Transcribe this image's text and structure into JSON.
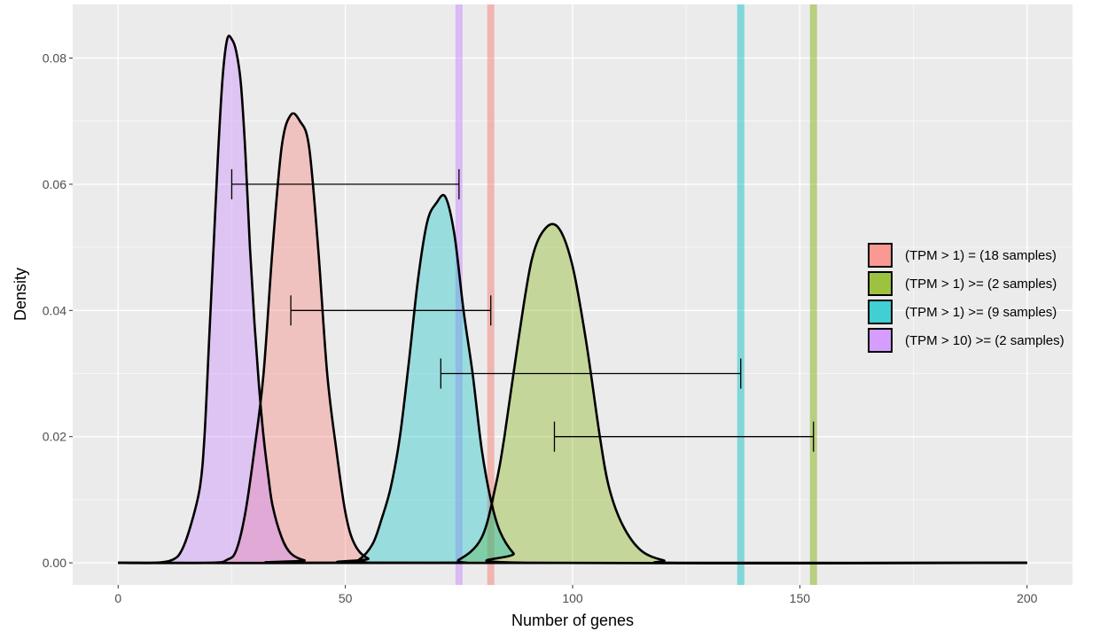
{
  "chart_data": {
    "type": "area",
    "title": "",
    "xlabel": "Number of genes",
    "ylabel": "Density",
    "xlim": [
      -10,
      210
    ],
    "ylim": [
      -0.0035,
      0.0885
    ],
    "x_ticks": [
      0,
      50,
      100,
      150,
      200
    ],
    "x_tick_labels": [
      "0",
      "50",
      "100",
      "150",
      "200"
    ],
    "y_ticks": [
      0.0,
      0.02,
      0.04,
      0.06,
      0.08
    ],
    "y_tick_labels": [
      "0.00",
      "0.02",
      "0.04",
      "0.06",
      "0.08"
    ],
    "grid": true,
    "legend_position": "right",
    "series": [
      {
        "name": "(TPM > 1) = (18 samples)",
        "color": "#F8766D",
        "vline": 82,
        "errorbar": {
          "y": 0.04,
          "xmin": 38,
          "xmax": 82
        },
        "density": [
          [
            0,
            0
          ],
          [
            20,
            0
          ],
          [
            24,
            0.0005
          ],
          [
            26,
            0.002
          ],
          [
            28,
            0.008
          ],
          [
            30,
            0.018
          ],
          [
            32,
            0.03
          ],
          [
            34,
            0.05
          ],
          [
            36,
            0.066
          ],
          [
            38,
            0.071
          ],
          [
            40,
            0.07
          ],
          [
            42,
            0.066
          ],
          [
            44,
            0.05
          ],
          [
            46,
            0.03
          ],
          [
            48,
            0.018
          ],
          [
            50,
            0.008
          ],
          [
            52,
            0.003
          ],
          [
            55,
            0.0007
          ],
          [
            60,
            0
          ],
          [
            200,
            0
          ]
        ]
      },
      {
        "name": "(TPM > 1) >= (2 samples)",
        "color": "#7CAE00",
        "vline": 153,
        "errorbar": {
          "y": 0.02,
          "xmin": 96,
          "xmax": 153
        },
        "density": [
          [
            0,
            0
          ],
          [
            70,
            0
          ],
          [
            75,
            0.0005
          ],
          [
            80,
            0.004
          ],
          [
            83,
            0.012
          ],
          [
            85,
            0.02
          ],
          [
            88,
            0.035
          ],
          [
            91,
            0.048
          ],
          [
            94,
            0.053
          ],
          [
            97,
            0.053
          ],
          [
            100,
            0.047
          ],
          [
            103,
            0.035
          ],
          [
            106,
            0.02
          ],
          [
            108,
            0.012
          ],
          [
            111,
            0.006
          ],
          [
            115,
            0.002
          ],
          [
            120,
            0.0004
          ],
          [
            125,
            0
          ],
          [
            200,
            0
          ]
        ]
      },
      {
        "name": "(TPM > 1) >= (9 samples)",
        "color": "#00BFC4",
        "vline": 137,
        "errorbar": {
          "y": 0.03,
          "xmin": 71,
          "xmax": 137
        },
        "density": [
          [
            0,
            0
          ],
          [
            50,
            0
          ],
          [
            53,
            0.0005
          ],
          [
            56,
            0.003
          ],
          [
            58,
            0.007
          ],
          [
            60,
            0.012
          ],
          [
            62,
            0.02
          ],
          [
            64,
            0.032
          ],
          [
            66,
            0.045
          ],
          [
            68,
            0.054
          ],
          [
            70,
            0.057
          ],
          [
            72,
            0.058
          ],
          [
            74,
            0.052
          ],
          [
            76,
            0.04
          ],
          [
            78,
            0.03
          ],
          [
            80,
            0.018
          ],
          [
            82,
            0.01
          ],
          [
            84,
            0.005
          ],
          [
            87,
            0.0015
          ],
          [
            90,
            0
          ],
          [
            200,
            0
          ]
        ]
      },
      {
        "name": "(TPM > 10) >= (2 samples)",
        "color": "#C77CFF",
        "vline": 75,
        "errorbar": {
          "y": 0.06,
          "xmin": 25,
          "xmax": 75
        },
        "density": [
          [
            0,
            0
          ],
          [
            8,
            0
          ],
          [
            12,
            0.0005
          ],
          [
            14,
            0.002
          ],
          [
            16,
            0.006
          ],
          [
            18,
            0.012
          ],
          [
            19,
            0.02
          ],
          [
            20,
            0.035
          ],
          [
            21,
            0.05
          ],
          [
            22,
            0.065
          ],
          [
            23,
            0.077
          ],
          [
            24,
            0.083
          ],
          [
            25,
            0.083
          ],
          [
            26,
            0.081
          ],
          [
            27,
            0.076
          ],
          [
            28,
            0.065
          ],
          [
            29,
            0.05
          ],
          [
            30,
            0.038
          ],
          [
            31,
            0.028
          ],
          [
            32,
            0.02
          ],
          [
            33,
            0.014
          ],
          [
            34,
            0.009
          ],
          [
            36,
            0.004
          ],
          [
            38,
            0.0015
          ],
          [
            41,
            0.0004
          ],
          [
            45,
            0
          ],
          [
            200,
            0
          ]
        ]
      }
    ]
  }
}
